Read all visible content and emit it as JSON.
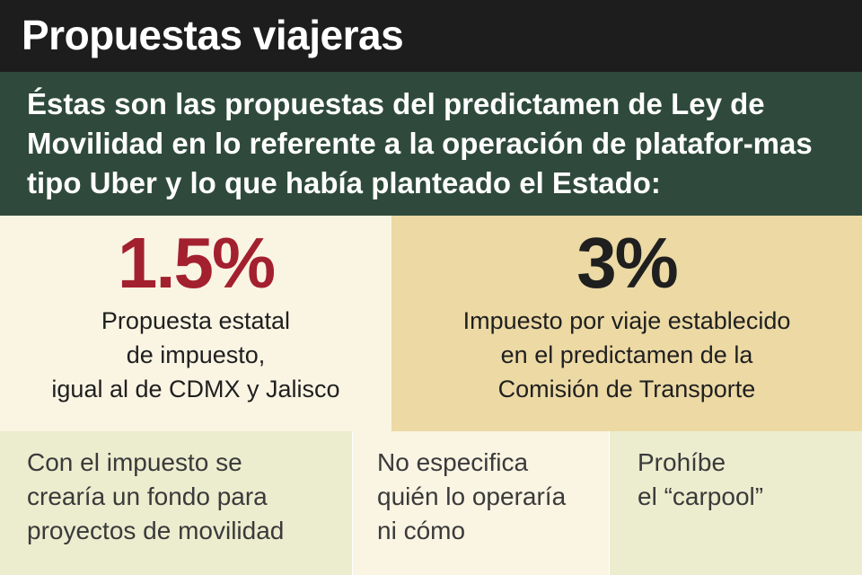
{
  "header": {
    "title": "Propuestas viajeras"
  },
  "intro": {
    "text": "Éstas son las propuestas del predictamen de Ley de Movilidad en lo referente a la operación de platafor-mas tipo Uber y lo que había planteado el Estado:"
  },
  "stats": [
    {
      "value": "1.5%",
      "description": "Propuesta estatal\nde impuesto,\nigual al de CDMX y Jalisco"
    },
    {
      "value": "3%",
      "description": "Impuesto por viaje establecido\nen el predictamen de la\nComisión de Transporte"
    }
  ],
  "notes": [
    {
      "text": "Con el impuesto se\ncrearía un fondo para\nproyectos de movilidad"
    },
    {
      "text": "No especifica\nquién lo operaría\nni cómo"
    },
    {
      "text": "Prohíbe\nel “carpool”"
    }
  ],
  "colors": {
    "title_bar": "#1d1d1d",
    "intro_band": "#2f4a3c",
    "stat_left_bg": "#faf4e3",
    "stat_right_bg": "#ecd9a4",
    "accent_red": "#a3202f",
    "note_bg": "#ecedcf"
  }
}
